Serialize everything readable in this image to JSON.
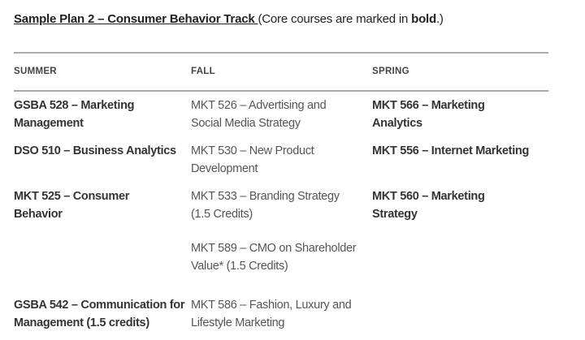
{
  "title": {
    "link": "Sample Plan 2 – Consumer Behavior Track ",
    "note_pre": "(Core courses are marked in ",
    "note_bold": "bold",
    "note_post": ".)"
  },
  "headers": [
    "SUMMER",
    "FALL",
    "SPRING"
  ],
  "rows": [
    {
      "summer": "GSBA 528 – Marketing Management",
      "fall": "MKT 526 – Advertising and Social Media Strategy",
      "spring": "MKT 566 – Marketing Analytics"
    },
    {
      "summer": "DSO 510 – Business Analytics",
      "fall": "MKT 530 – New Product Development",
      "spring": "MKT 556 – Internet Marketing"
    },
    {
      "summer": "MKT 525 – Consumer Behavior",
      "fall": "MKT 533 – Branding Strategy (1.5 Credits)",
      "spring": "MKT 560 – Marketing Strategy"
    },
    {
      "summer": "",
      "fall": "MKT 589 – CMO on Shareholder Value* (1.5 Credits)",
      "spring": ""
    },
    {
      "summer": "GSBA 542 – Communication for Management (1.5 credits)",
      "fall": "MKT 586 – Fashion, Luxury and Lifestyle Marketing",
      "spring": ""
    }
  ]
}
